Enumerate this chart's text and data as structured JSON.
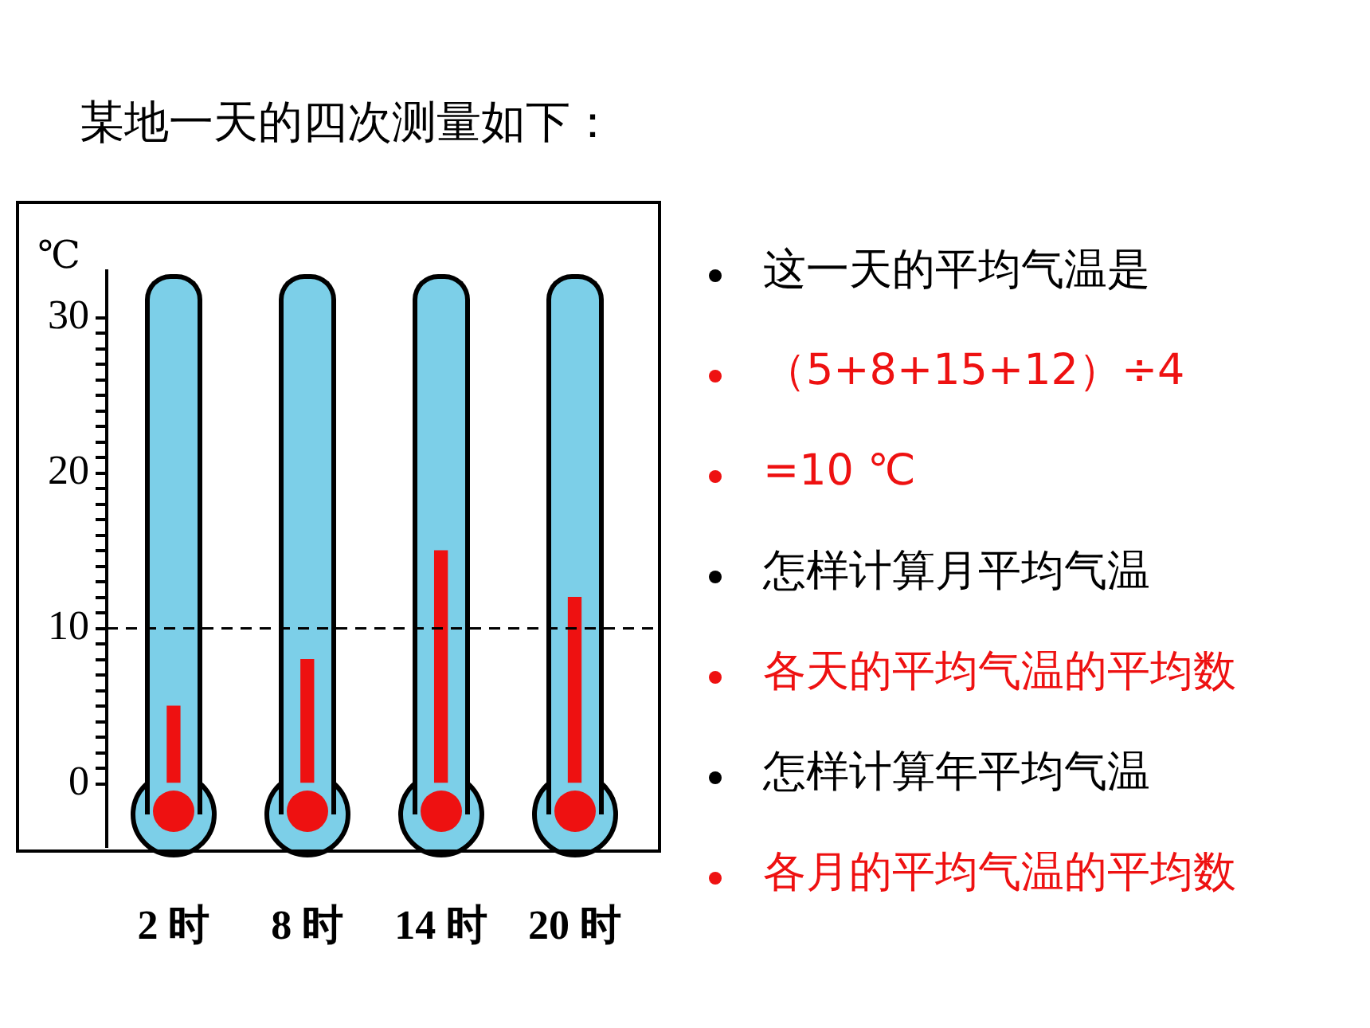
{
  "chart_data": {
    "type": "bar",
    "title": "某地一天的四次测量如下：",
    "ylabel": "℃",
    "categories": [
      "2 时",
      "8 时",
      "14 时",
      "20 时"
    ],
    "values": [
      5,
      8,
      15,
      12
    ],
    "color": "#ee1111",
    "ylim": [
      -4,
      33
    ],
    "yticks": [
      0,
      {
        "value": 1,
        "label": null
      },
      {
        "value": 2,
        "label": null
      },
      {
        "value": 3,
        "label": null
      },
      {
        "value": 4,
        "label": null
      },
      {
        "value": 5,
        "label": null
      },
      {
        "value": 6,
        "label": null
      },
      {
        "value": 7,
        "label": null
      },
      {
        "value": 8,
        "label": null
      },
      {
        "value": 9,
        "label": null
      },
      10,
      {
        "value": 11,
        "label": null
      },
      {
        "value": 12,
        "label": null
      },
      {
        "value": 13,
        "label": null
      },
      {
        "value": 14,
        "label": null
      },
      {
        "value": 15,
        "label": null
      },
      {
        "value": 16,
        "label": null
      },
      {
        "value": 17,
        "label": null
      },
      {
        "value": 18,
        "label": null
      },
      {
        "value": 19,
        "label": null
      },
      20,
      {
        "value": 21,
        "label": null
      },
      {
        "value": 22,
        "label": null
      },
      {
        "value": 23,
        "label": null
      },
      {
        "value": 24,
        "label": null
      },
      {
        "value": 25,
        "label": null
      },
      {
        "value": 26,
        "label": null
      },
      {
        "value": 27,
        "label": null
      },
      {
        "value": 28,
        "label": null
      },
      {
        "value": 29,
        "label": null
      },
      30
    ],
    "ref_lines": [
      {
        "axis": "y",
        "value": 10,
        "color": "#000000",
        "line_style": "dashed"
      }
    ],
    "annotations": [
      "这一天的平均气温是",
      "（5+8+15+12）÷4",
      "=10 ℃",
      "怎样计算月平均气温",
      "各天的平均气温的平均数",
      "怎样计算年平均气温",
      "各月的平均气温的平均数"
    ]
  }
}
